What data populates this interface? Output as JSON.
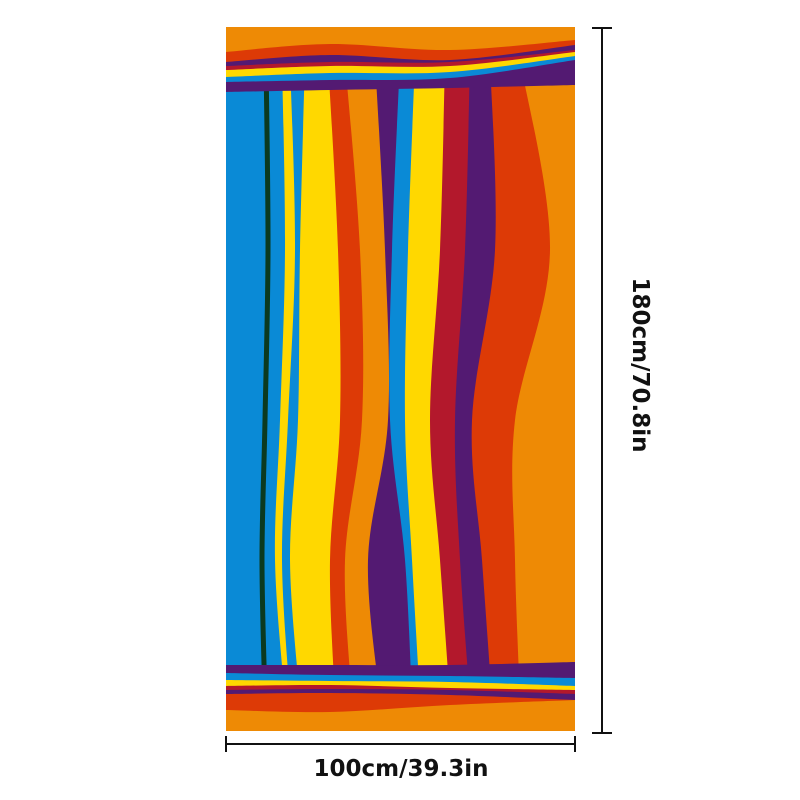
{
  "product": {
    "height_label": "180cm/70.8in",
    "width_label": "100cm/39.3in"
  },
  "palette": {
    "orange": "#ee8a05",
    "red": "#dd3a06",
    "crimson": "#b3182c",
    "purple": "#531a72",
    "yellow": "#ffd800",
    "blue": "#0a8ad6",
    "green": "#0b3a1f",
    "line": "#111111"
  }
}
